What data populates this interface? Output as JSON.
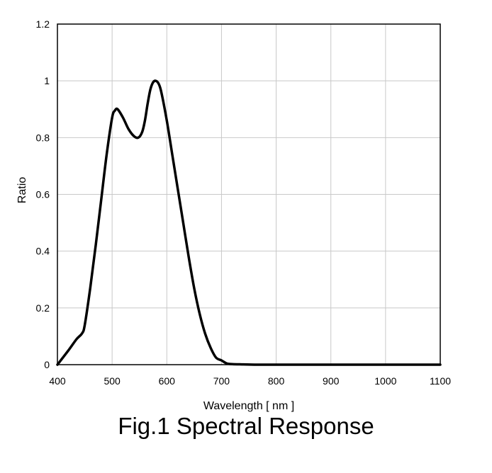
{
  "caption": "Fig.1 Spectral Response",
  "chart_data": {
    "type": "line",
    "title": "",
    "xlabel": "Wavelength [ nm ]",
    "ylabel": "Ratio",
    "xlim": [
      400,
      1100
    ],
    "ylim": [
      0,
      1.2
    ],
    "x_ticks": [
      400,
      500,
      600,
      700,
      800,
      900,
      1000,
      1100
    ],
    "x_tick_labels": [
      "400",
      "500",
      "600",
      "700",
      "800",
      "900",
      "1000",
      "1100"
    ],
    "y_ticks": [
      0,
      0.2,
      0.4,
      0.6,
      0.8,
      1.0,
      1.2
    ],
    "y_tick_labels": [
      "0",
      "0.2",
      "0.4",
      "0.6",
      "0.8",
      "1",
      "1.2"
    ],
    "grid": true,
    "line_color": "#000000",
    "grid_color": "#c8c8c8",
    "series": [
      {
        "x": [
          400,
          420,
          435,
          445,
          450,
          460,
          470,
          480,
          490,
          500,
          505,
          510,
          520,
          530,
          540,
          548,
          555,
          560,
          565,
          570,
          575,
          580,
          585,
          590,
          600,
          610,
          620,
          630,
          640,
          650,
          660,
          670,
          680,
          690,
          700,
          710,
          720,
          740,
          760,
          800,
          900,
          1000,
          1100
        ],
        "y": [
          0,
          0.05,
          0.09,
          0.11,
          0.14,
          0.27,
          0.42,
          0.58,
          0.74,
          0.87,
          0.895,
          0.9,
          0.87,
          0.83,
          0.805,
          0.8,
          0.82,
          0.86,
          0.92,
          0.97,
          0.995,
          1.0,
          0.99,
          0.96,
          0.86,
          0.74,
          0.62,
          0.5,
          0.38,
          0.27,
          0.18,
          0.11,
          0.06,
          0.025,
          0.015,
          0.004,
          0.002,
          0.001,
          0,
          0,
          0,
          0,
          0
        ]
      }
    ]
  }
}
